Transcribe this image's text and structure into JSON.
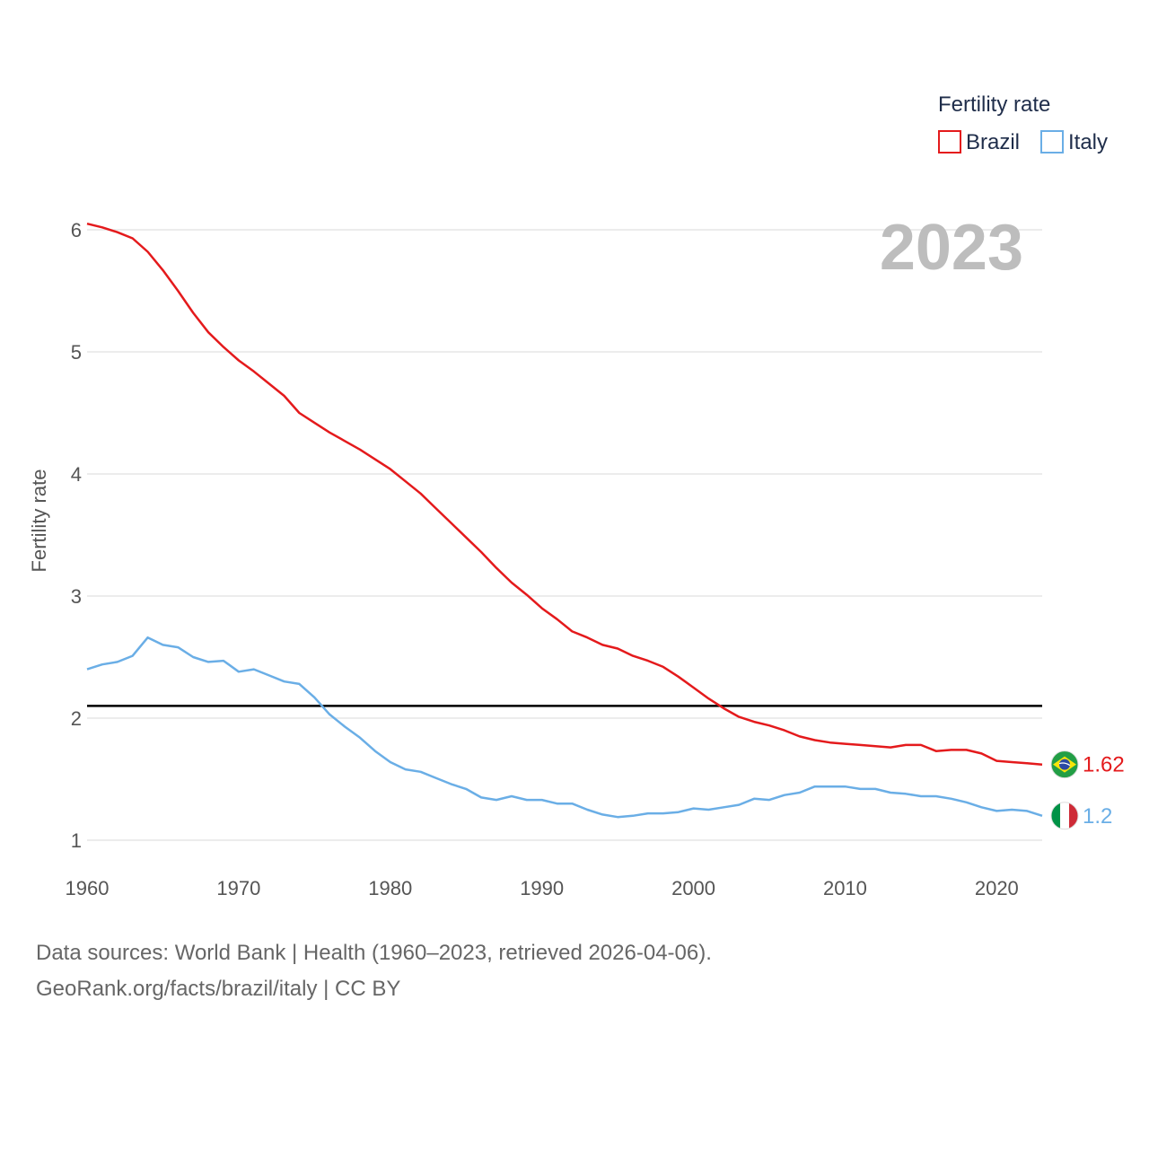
{
  "chart_data": {
    "type": "line",
    "title": "",
    "year_label": "2023",
    "ylabel": "Fertility rate",
    "xlabel": "",
    "xlim": [
      1960,
      2023
    ],
    "ylim": [
      1,
      6
    ],
    "x_ticks": [
      "1960",
      "1970",
      "1980",
      "1990",
      "2000",
      "2010",
      "2020"
    ],
    "y_ticks": [
      "1",
      "2",
      "3",
      "4",
      "5",
      "6"
    ],
    "legend_title": "Fertility rate",
    "legend_position": "top-right",
    "reference_line": {
      "y": 2.1
    },
    "x": [
      1960,
      1961,
      1962,
      1963,
      1964,
      1965,
      1966,
      1967,
      1968,
      1969,
      1970,
      1971,
      1972,
      1973,
      1974,
      1975,
      1976,
      1977,
      1978,
      1979,
      1980,
      1981,
      1982,
      1983,
      1984,
      1985,
      1986,
      1987,
      1988,
      1989,
      1990,
      1991,
      1992,
      1993,
      1994,
      1995,
      1996,
      1997,
      1998,
      1999,
      2000,
      2001,
      2002,
      2003,
      2004,
      2005,
      2006,
      2007,
      2008,
      2009,
      2010,
      2011,
      2012,
      2013,
      2014,
      2015,
      2016,
      2017,
      2018,
      2019,
      2020,
      2021,
      2022,
      2023
    ],
    "series": [
      {
        "name": "Brazil",
        "color": "#e41a1c",
        "end_label": "1.62",
        "flag": "brazil-flag",
        "values": [
          6.05,
          6.02,
          5.98,
          5.93,
          5.82,
          5.67,
          5.5,
          5.32,
          5.16,
          5.04,
          4.93,
          4.84,
          4.74,
          4.64,
          4.5,
          4.42,
          4.34,
          4.27,
          4.2,
          4.12,
          4.04,
          3.94,
          3.84,
          3.72,
          3.6,
          3.48,
          3.36,
          3.23,
          3.11,
          3.01,
          2.9,
          2.81,
          2.71,
          2.66,
          2.6,
          2.57,
          2.51,
          2.47,
          2.42,
          2.34,
          2.25,
          2.16,
          2.08,
          2.01,
          1.97,
          1.94,
          1.9,
          1.85,
          1.82,
          1.8,
          1.79,
          1.78,
          1.77,
          1.76,
          1.78,
          1.78,
          1.73,
          1.74,
          1.74,
          1.71,
          1.65,
          1.64,
          1.63,
          1.62
        ]
      },
      {
        "name": "Italy",
        "color": "#6aaee6",
        "end_label": "1.2",
        "flag": "italy-flag",
        "values": [
          2.4,
          2.44,
          2.46,
          2.51,
          2.66,
          2.6,
          2.58,
          2.5,
          2.46,
          2.47,
          2.38,
          2.4,
          2.35,
          2.3,
          2.28,
          2.17,
          2.03,
          1.93,
          1.84,
          1.73,
          1.64,
          1.58,
          1.56,
          1.51,
          1.46,
          1.42,
          1.35,
          1.33,
          1.36,
          1.33,
          1.33,
          1.3,
          1.3,
          1.25,
          1.21,
          1.19,
          1.2,
          1.22,
          1.22,
          1.23,
          1.26,
          1.25,
          1.27,
          1.29,
          1.34,
          1.33,
          1.37,
          1.39,
          1.44,
          1.44,
          1.44,
          1.42,
          1.42,
          1.39,
          1.38,
          1.36,
          1.36,
          1.34,
          1.31,
          1.27,
          1.24,
          1.25,
          1.24,
          1.2
        ]
      }
    ]
  },
  "footer": {
    "line1": "Data sources: World Bank | Health (1960–2023, retrieved 2026-04-06).",
    "line2": "GeoRank.org/facts/brazil/italy | CC BY"
  }
}
